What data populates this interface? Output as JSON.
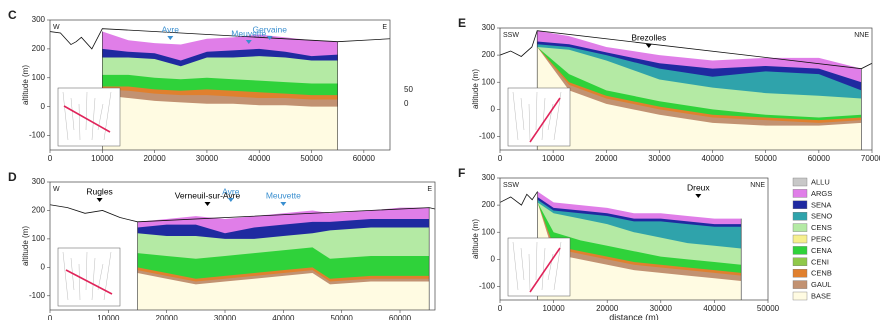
{
  "chart_data": [
    {
      "type": "area",
      "panel": "C",
      "ylabel": "altitude (m)",
      "left_dir": "W",
      "right_dir": "E",
      "xlim": [
        0,
        65000
      ],
      "xticks": [
        0,
        10000,
        20000,
        30000,
        40000,
        50000,
        60000
      ],
      "ylim": [
        -150,
        300
      ],
      "yticks": [
        -100,
        0,
        100,
        200,
        300
      ],
      "side_labels": [
        "50",
        "0"
      ],
      "annotations": [
        {
          "label": "Avre",
          "x": 23000,
          "color": "#3a8fd0"
        },
        {
          "label": "Meuvette",
          "x": 38000,
          "color": "#3a8fd0"
        },
        {
          "label": "Gervaine",
          "x": 42000,
          "color": "#3a8fd0"
        }
      ],
      "surface": {
        "x": [
          0,
          2000,
          4000,
          5000,
          6000,
          8000,
          10000,
          55000,
          60000,
          65000
        ],
        "values": [
          260,
          255,
          215,
          225,
          240,
          200,
          270,
          225,
          230,
          235
        ]
      },
      "x": [
        10000,
        15000,
        20000,
        25000,
        30000,
        35000,
        40000,
        45000,
        50000,
        55000
      ],
      "series": [
        {
          "name": "ARGS",
          "color": "#e07ee8",
          "values": [
            260,
            230,
            220,
            215,
            235,
            240,
            250,
            240,
            230,
            225
          ]
        },
        {
          "name": "SENA",
          "color": "#1f2aa0",
          "values": [
            200,
            190,
            185,
            160,
            190,
            195,
            200,
            190,
            175,
            180
          ]
        },
        {
          "name": "CENS",
          "color": "#b4eaa4",
          "values": [
            170,
            170,
            165,
            140,
            170,
            170,
            175,
            170,
            160,
            160
          ]
        },
        {
          "name": "CENA",
          "color": "#2fd23a",
          "values": [
            110,
            110,
            100,
            95,
            100,
            95,
            90,
            85,
            80,
            80
          ]
        },
        {
          "name": "CENB",
          "color": "#e0802e",
          "values": [
            70,
            70,
            60,
            55,
            60,
            55,
            50,
            45,
            40,
            40
          ]
        },
        {
          "name": "GAUL",
          "color": "#c29272",
          "values": [
            60,
            55,
            45,
            40,
            40,
            35,
            30,
            30,
            25,
            25
          ]
        },
        {
          "name": "BASE",
          "color": "#fffbe2",
          "values": [
            40,
            30,
            20,
            15,
            10,
            10,
            5,
            5,
            0,
            0
          ]
        }
      ]
    },
    {
      "type": "area",
      "panel": "D",
      "ylabel": "altitude (m)",
      "left_dir": "W",
      "right_dir": "E",
      "xlim": [
        0,
        66000
      ],
      "xticks": [
        0,
        10000,
        20000,
        30000,
        40000,
        50000,
        60000
      ],
      "ylim": [
        -150,
        300
      ],
      "yticks": [
        -100,
        0,
        100,
        200,
        300
      ],
      "annotations": [
        {
          "label": "Rugles",
          "x": 8500,
          "color": "#000000"
        },
        {
          "label": "Verneuil-sur-Avre",
          "x": 27000,
          "color": "#000000"
        },
        {
          "label": "Avre",
          "x": 31000,
          "color": "#3a8fd0"
        },
        {
          "label": "Meuvette",
          "x": 40000,
          "color": "#3a8fd0"
        }
      ],
      "surface": {
        "x": [
          0,
          3000,
          6000,
          9000,
          12000,
          15000,
          65000,
          66000
        ],
        "values": [
          220,
          210,
          190,
          200,
          175,
          160,
          210,
          205
        ]
      },
      "x": [
        15000,
        20000,
        25000,
        30000,
        35000,
        40000,
        45000,
        48000,
        55000,
        60000,
        65000
      ],
      "series": [
        {
          "name": "ARGS",
          "color": "#e07ee8",
          "values": [
            160,
            170,
            180,
            170,
            180,
            190,
            200,
            190,
            200,
            210,
            210
          ]
        },
        {
          "name": "SENA",
          "color": "#1f2aa0",
          "values": [
            140,
            150,
            150,
            120,
            140,
            150,
            160,
            160,
            170,
            170,
            170
          ]
        },
        {
          "name": "CENS",
          "color": "#b4eaa4",
          "values": [
            120,
            110,
            110,
            100,
            100,
            110,
            120,
            130,
            140,
            140,
            140
          ]
        },
        {
          "name": "CENA",
          "color": "#2fd23a",
          "values": [
            50,
            40,
            30,
            40,
            50,
            60,
            70,
            30,
            40,
            40,
            40
          ]
        },
        {
          "name": "CENB",
          "color": "#e0802e",
          "values": [
            0,
            -20,
            -40,
            -30,
            -20,
            -10,
            0,
            -40,
            -30,
            -30,
            -30
          ]
        },
        {
          "name": "GAUL",
          "color": "#c29272",
          "values": [
            -10,
            -30,
            -50,
            -40,
            -30,
            -20,
            -10,
            -50,
            -40,
            -40,
            -40
          ]
        },
        {
          "name": "BASE",
          "color": "#fffbe2",
          "values": [
            -20,
            -40,
            -60,
            -50,
            -40,
            -30,
            -20,
            -60,
            -50,
            -50,
            -50
          ]
        }
      ]
    },
    {
      "type": "area",
      "panel": "E",
      "ylabel": "altitude (m)",
      "left_dir": "SSW",
      "right_dir": "NNE",
      "xlim": [
        0,
        70000
      ],
      "xticks": [
        0,
        10000,
        20000,
        30000,
        40000,
        50000,
        60000,
        70000
      ],
      "ylim": [
        -150,
        300
      ],
      "yticks": [
        -100,
        0,
        100,
        200,
        300
      ],
      "annotations": [
        {
          "label": "Brezolles",
          "x": 28000,
          "color": "#000000"
        }
      ],
      "surface": {
        "x": [
          0,
          2000,
          4000,
          6000,
          7000,
          68000,
          70000
        ],
        "values": [
          200,
          215,
          195,
          230,
          290,
          150,
          170
        ]
      },
      "x": [
        7000,
        13000,
        20000,
        30000,
        40000,
        50000,
        60000,
        68000
      ],
      "series": [
        {
          "name": "ARGS",
          "color": "#e07ee8",
          "values": [
            290,
            270,
            230,
            200,
            180,
            190,
            190,
            150
          ]
        },
        {
          "name": "SENA",
          "color": "#1f2aa0",
          "values": [
            250,
            240,
            210,
            170,
            150,
            160,
            150,
            100
          ]
        },
        {
          "name": "SENO",
          "color": "#2fa3ab",
          "values": [
            240,
            230,
            200,
            150,
            120,
            140,
            130,
            70
          ]
        },
        {
          "name": "CENS",
          "color": "#b4eaa4",
          "values": [
            230,
            220,
            180,
            110,
            80,
            60,
            50,
            40
          ]
        },
        {
          "name": "CENA",
          "color": "#2fd23a",
          "values": [
            230,
            130,
            70,
            30,
            0,
            -20,
            -30,
            -20
          ]
        },
        {
          "name": "CENB",
          "color": "#e0802e",
          "values": [
            230,
            100,
            50,
            10,
            -20,
            -30,
            -40,
            -30
          ]
        },
        {
          "name": "GAUL",
          "color": "#c29272",
          "values": [
            230,
            90,
            40,
            0,
            -30,
            -40,
            -50,
            -40
          ]
        },
        {
          "name": "BASE",
          "color": "#fffbe2",
          "values": [
            230,
            70,
            20,
            -20,
            -50,
            -60,
            -60,
            -50
          ]
        }
      ]
    },
    {
      "type": "area",
      "panel": "F",
      "ylabel": "altitude (m)",
      "xlabel": "distance (m)",
      "left_dir": "SSW",
      "right_dir": "NNE",
      "xlim": [
        0,
        50000
      ],
      "xticks": [
        0,
        10000,
        20000,
        30000,
        40000,
        50000
      ],
      "ylim": [
        -150,
        300
      ],
      "yticks": [
        -100,
        0,
        100,
        200,
        300
      ],
      "annotations": [
        {
          "label": "Dreux",
          "x": 37000,
          "color": "#000000"
        }
      ],
      "surface": {
        "x": [
          0,
          2000,
          4000,
          5000,
          6000,
          7000
        ],
        "values": [
          210,
          230,
          200,
          240,
          220,
          250
        ]
      },
      "x": [
        7000,
        10000,
        15000,
        20000,
        25000,
        30000,
        35000,
        40000,
        45000
      ],
      "series": [
        {
          "name": "ARGS",
          "color": "#e07ee8",
          "values": [
            250,
            210,
            200,
            190,
            170,
            170,
            160,
            150,
            150
          ]
        },
        {
          "name": "SENA",
          "color": "#1f2aa0",
          "values": [
            230,
            190,
            180,
            170,
            150,
            150,
            140,
            130,
            130
          ]
        },
        {
          "name": "SENO",
          "color": "#2fa3ab",
          "values": [
            220,
            180,
            170,
            160,
            140,
            140,
            130,
            120,
            120
          ]
        },
        {
          "name": "CENS",
          "color": "#b4eaa4",
          "values": [
            210,
            170,
            150,
            130,
            100,
            80,
            60,
            50,
            40
          ]
        },
        {
          "name": "CENA",
          "color": "#2fd23a",
          "values": [
            210,
            100,
            70,
            50,
            30,
            10,
            0,
            -10,
            -20
          ]
        },
        {
          "name": "CENB",
          "color": "#e0802e",
          "values": [
            210,
            50,
            30,
            10,
            -10,
            -20,
            -30,
            -40,
            -50
          ]
        },
        {
          "name": "GAUL",
          "color": "#c29272",
          "values": [
            210,
            40,
            20,
            0,
            -20,
            -30,
            -40,
            -50,
            -60
          ]
        },
        {
          "name": "BASE",
          "color": "#fffbe2",
          "values": [
            210,
            20,
            0,
            -20,
            -40,
            -50,
            -60,
            -70,
            -80
          ]
        }
      ]
    }
  ],
  "legend": [
    {
      "name": "ALLU",
      "color": "#c8c8c8"
    },
    {
      "name": "ARGS",
      "color": "#e07ee8"
    },
    {
      "name": "SENA",
      "color": "#1f2aa0"
    },
    {
      "name": "SENO",
      "color": "#2fa3ab"
    },
    {
      "name": "CENS",
      "color": "#b4eaa4"
    },
    {
      "name": "PERC",
      "color": "#f6ef8e"
    },
    {
      "name": "CENA",
      "color": "#2fd23a"
    },
    {
      "name": "CENI",
      "color": "#8fc84a"
    },
    {
      "name": "CENB",
      "color": "#e0802e"
    },
    {
      "name": "GAUL",
      "color": "#c29272"
    },
    {
      "name": "BASE",
      "color": "#fffbe2"
    }
  ]
}
